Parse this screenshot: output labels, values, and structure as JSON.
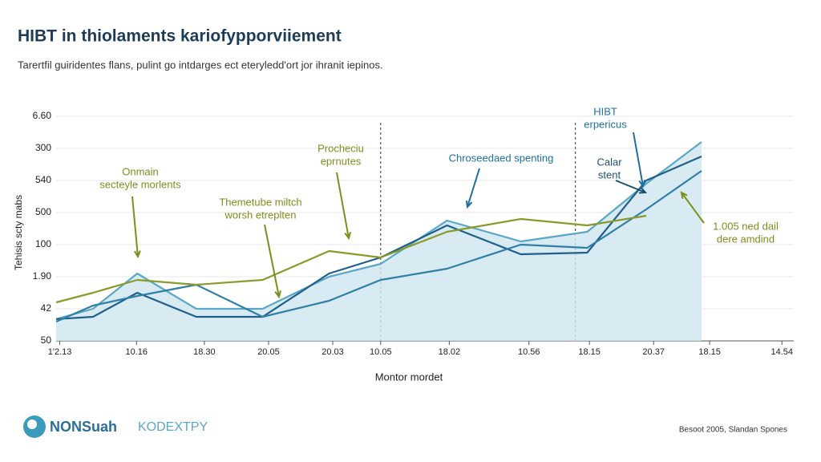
{
  "chart_data": {
    "type": "line",
    "title": "HIBT in thiolaments kariofypporviiement",
    "subtitle": "Tarertfil guiridentes flans, pulint go intdarges ect eteryledd'ort jor ihranit iepinos.",
    "y_label": "Tehisis scty mabs",
    "x_label": "Montor mordet",
    "logo": "NONSuah",
    "logo_tail": "KODEXTPY",
    "footer": "Besoot 2005, Slandan Spones",
    "xlim": [
      0,
      100
    ],
    "ylim": [
      0,
      7
    ],
    "xticks": [
      {
        "value": 0.5,
        "label": "1'2.13"
      },
      {
        "value": 10.9,
        "label": "10.16"
      },
      {
        "value": 20.1,
        "label": "18.30"
      },
      {
        "value": 28.8,
        "label": "20.05"
      },
      {
        "value": 37.5,
        "label": "20.03"
      },
      {
        "value": 44,
        "label": "10.05"
      },
      {
        "value": 53.3,
        "label": "18.02"
      },
      {
        "value": 64.1,
        "label": "10.56"
      },
      {
        "value": 72.3,
        "label": "18.15"
      },
      {
        "value": 81,
        "label": "20.37"
      },
      {
        "value": 88.6,
        "label": "18.15"
      },
      {
        "value": 98.4,
        "label": "14.54"
      }
    ],
    "yticks": [
      {
        "value": 0,
        "label": "50"
      },
      {
        "value": 1,
        "label": "42"
      },
      {
        "value": 2,
        "label": "1.90"
      },
      {
        "value": 3,
        "label": "100"
      },
      {
        "value": 4,
        "label": "500"
      },
      {
        "value": 5,
        "label": "540"
      },
      {
        "value": 6,
        "label": "300"
      },
      {
        "value": 7,
        "label": "6.60"
      }
    ],
    "grid": true,
    "vlines": [
      44,
      70.4
    ],
    "x": [
      0,
      5,
      11,
      19,
      28,
      37,
      44,
      53,
      63,
      72,
      80,
      87.5
    ],
    "series": [
      {
        "name": "Area",
        "color": "#5aa7c7",
        "fill": "#cfe6ef",
        "values": [
          0.68,
          1.0,
          2.1,
          1.0,
          1.0,
          2.0,
          2.4,
          3.75,
          3.1,
          3.4,
          4.9,
          6.2
        ]
      },
      {
        "name": "Navy",
        "color": "#1f5f8b",
        "values": [
          0.68,
          0.75,
          1.5,
          0.75,
          0.75,
          2.1,
          2.6,
          3.6,
          2.7,
          2.75,
          5.0,
          5.75
        ]
      },
      {
        "name": "Teal",
        "color": "#2f7fa8",
        "values": [
          0.6,
          1.1,
          1.4,
          1.75,
          0.75,
          1.25,
          1.9,
          2.25,
          3.0,
          2.9,
          4.1,
          5.3
        ]
      },
      {
        "name": "Olive",
        "color": "#8a9a2a",
        "values": [
          1.2,
          1.5,
          1.9,
          1.75,
          1.9,
          2.8,
          2.6,
          3.4,
          3.8,
          3.6,
          3.9,
          null
        ]
      }
    ],
    "annotations": [
      {
        "lines": [
          "Onmain",
          "secteyle morlents"
        ],
        "color": "#7a8f1e"
      },
      {
        "lines": [
          "Procheciu",
          "eprnutes"
        ],
        "color": "#7a8f1e"
      },
      {
        "lines": [
          "Themetube miltch",
          "worsh etreplten"
        ],
        "color": "#7a8f1e"
      },
      {
        "lines": [
          "Chroseedaed spenting"
        ],
        "color": "#1f6f9e"
      },
      {
        "lines": [
          "HIBT",
          "erpericus"
        ],
        "color": "#1f6f9e"
      },
      {
        "lines": [
          "Calar",
          "stent"
        ],
        "color": "#1f4f6e"
      },
      {
        "lines": [
          "1.005 ned dail",
          "dere amdind"
        ],
        "color": "#7a8f1e"
      }
    ]
  }
}
